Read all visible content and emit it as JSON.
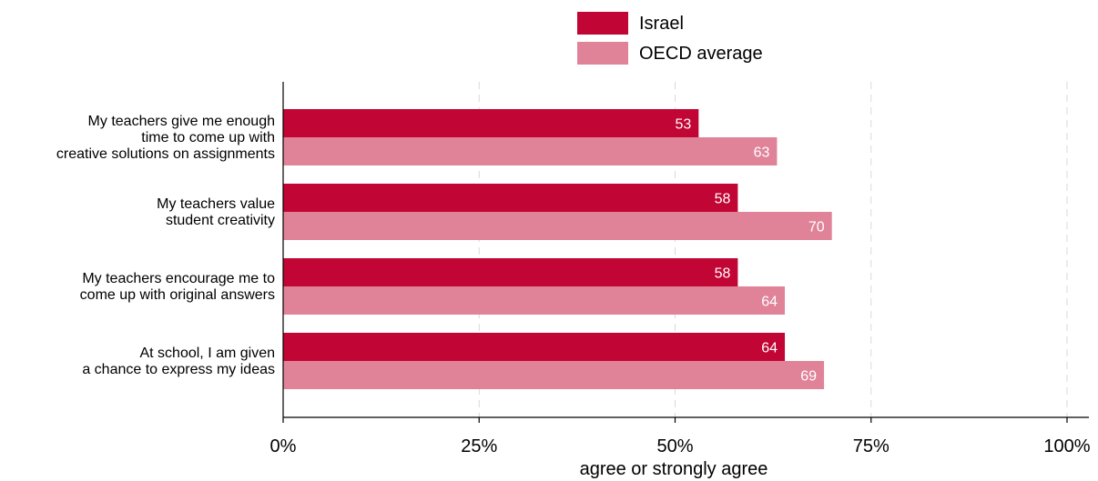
{
  "chart_data": {
    "type": "bar",
    "orientation": "horizontal",
    "categories": [
      [
        "My teachers give me enough",
        "time to come up with",
        "creative solutions on assignments"
      ],
      [
        "My teachers value",
        "student creativity"
      ],
      [
        "My teachers encourage me to",
        "come up with original answers"
      ],
      [
        "At school, I am given",
        "a chance to express my ideas"
      ]
    ],
    "series": [
      {
        "name": "Israel",
        "color": "#c10534",
        "values": [
          53,
          58,
          58,
          64
        ],
        "labels": [
          "53",
          "58",
          "58",
          "64"
        ]
      },
      {
        "name": "OECD average",
        "color": "#e08399",
        "values": [
          63,
          70,
          64,
          69
        ],
        "labels": [
          "63",
          "70",
          "64",
          "69"
        ]
      }
    ],
    "xlabel": "agree or strongly agree",
    "xlim": [
      0,
      100
    ],
    "xticks": [
      0,
      25,
      50,
      75,
      100
    ],
    "xtick_labels": [
      "0%",
      "25%",
      "50%",
      "75%",
      "100%"
    ],
    "grid": "vertical dashed",
    "legend_position": "top-center"
  }
}
